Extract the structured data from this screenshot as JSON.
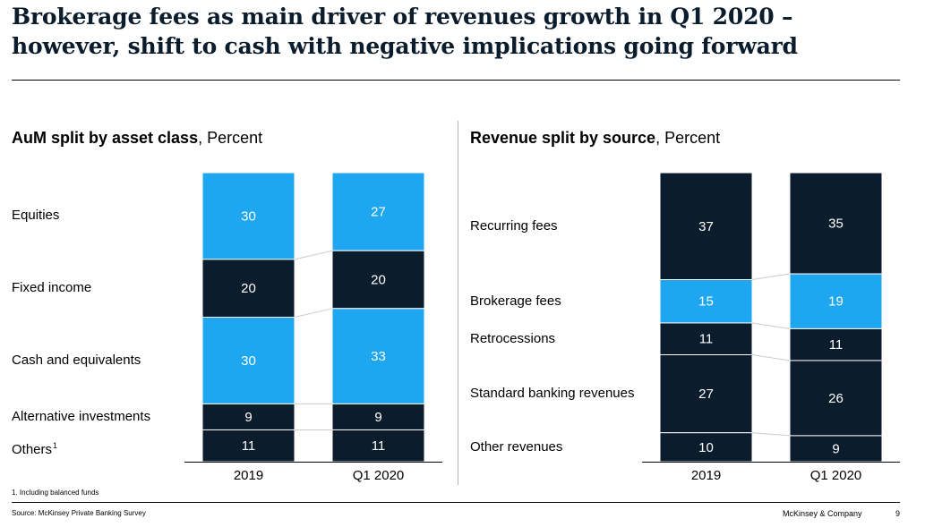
{
  "header": {
    "title_line1": "Brokerage fees as main driver of revenues growth in Q1 2020 –",
    "title_line2": "however, shift to cash with negative implications going forward"
  },
  "colors": {
    "dark": "#0b1c2c",
    "light": "#1ea7f0",
    "connector": "#cccccc"
  },
  "chart_data": [
    {
      "type": "bar",
      "stacked": true,
      "title": "AuM split by asset class",
      "title_suffix": "Percent",
      "categories": [
        "2019",
        "Q1 2020"
      ],
      "series": [
        {
          "name": "Equities",
          "values": [
            30,
            27
          ],
          "color": "light"
        },
        {
          "name": "Fixed income",
          "values": [
            20,
            20
          ],
          "color": "dark"
        },
        {
          "name": "Cash and equivalents",
          "values": [
            30,
            33
          ],
          "color": "light"
        },
        {
          "name": "Alternative investments",
          "values": [
            9,
            9
          ],
          "color": "dark"
        },
        {
          "name": "Others",
          "name_sup": "1",
          "values": [
            11,
            11
          ],
          "color": "dark"
        }
      ],
      "ylim": [
        0,
        100
      ]
    },
    {
      "type": "bar",
      "stacked": true,
      "title": "Revenue split by source",
      "title_suffix": "Percent",
      "categories": [
        "2019",
        "Q1 2020"
      ],
      "series": [
        {
          "name": "Recurring fees",
          "values": [
            37,
            35
          ],
          "color": "dark"
        },
        {
          "name": "Brokerage fees",
          "values": [
            15,
            19
          ],
          "color": "light"
        },
        {
          "name": "Retrocessions",
          "values": [
            11,
            11
          ],
          "color": "dark"
        },
        {
          "name": "Standard banking revenues",
          "values": [
            27,
            26
          ],
          "color": "dark"
        },
        {
          "name": "Other revenues",
          "values": [
            10,
            9
          ],
          "color": "dark"
        }
      ],
      "ylim": [
        0,
        100
      ]
    }
  ],
  "footnote": "1. Including balanced funds",
  "source": "Source: McKinsey Private Banking Survey",
  "brand": "McKinsey & Company",
  "page_number": "9"
}
